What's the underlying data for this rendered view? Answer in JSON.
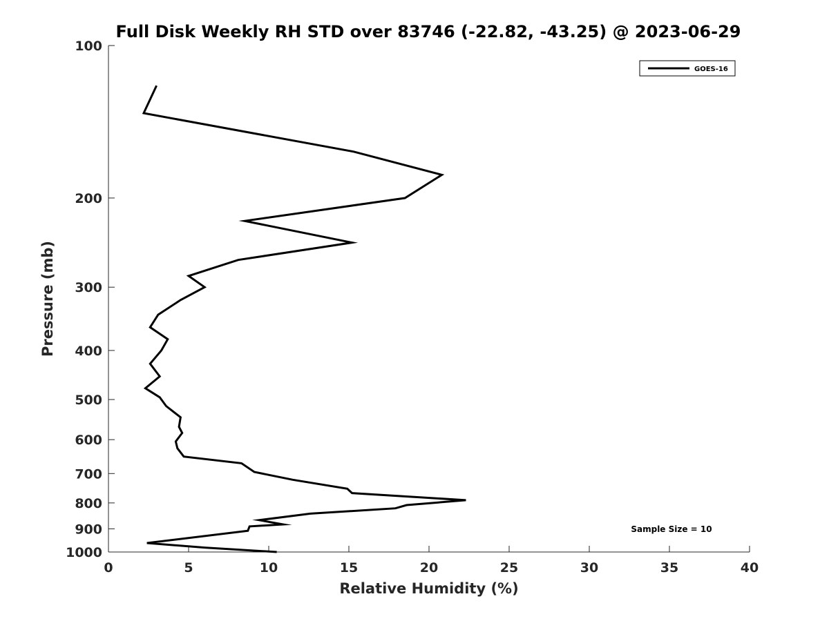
{
  "chart_data": {
    "type": "line",
    "title": "Full Disk Weekly RH STD over 83746 (-22.82, -43.25) @ 2023-06-29",
    "xlabel": "Relative Humidity (%)",
    "ylabel": "Pressure (mb)",
    "xlim": [
      0,
      40
    ],
    "ylim": [
      100,
      1000
    ],
    "y_scale": "log",
    "y_reversed": true,
    "grid": false,
    "x_ticks": [
      0,
      5,
      10,
      15,
      20,
      25,
      30,
      35,
      40
    ],
    "y_ticks": [
      100,
      200,
      300,
      400,
      500,
      600,
      700,
      800,
      900,
      1000
    ],
    "legend": {
      "position": "top-right",
      "entries": [
        "GOES-16"
      ]
    },
    "annotation": "Sample Size = 10",
    "series": [
      {
        "name": "GOES-16",
        "color": "#000000",
        "x": [
          3.0,
          2.2,
          15.3,
          20.8,
          18.5,
          8.5,
          15.2,
          8.1,
          5.0,
          6.0,
          4.5,
          3.1,
          2.6,
          3.7,
          3.3,
          2.6,
          3.2,
          2.3,
          3.2,
          3.6,
          4.5,
          4.4,
          4.6,
          4.2,
          4.3,
          4.7,
          8.3,
          9.1,
          11.5,
          14.9,
          15.2,
          22.3,
          18.6,
          17.9,
          12.6,
          9.4,
          10.9,
          8.8,
          8.7,
          2.4,
          6.0,
          10.5
        ],
        "y": [
          120,
          136,
          162,
          180,
          200,
          222,
          245,
          265,
          285,
          300,
          318,
          340,
          360,
          380,
          400,
          425,
          450,
          475,
          495,
          515,
          542,
          566,
          582,
          605,
          624,
          648,
          668,
          695,
          720,
          750,
          765,
          790,
          808,
          820,
          840,
          865,
          882,
          890,
          908,
          960,
          980,
          1000
        ]
      }
    ]
  }
}
